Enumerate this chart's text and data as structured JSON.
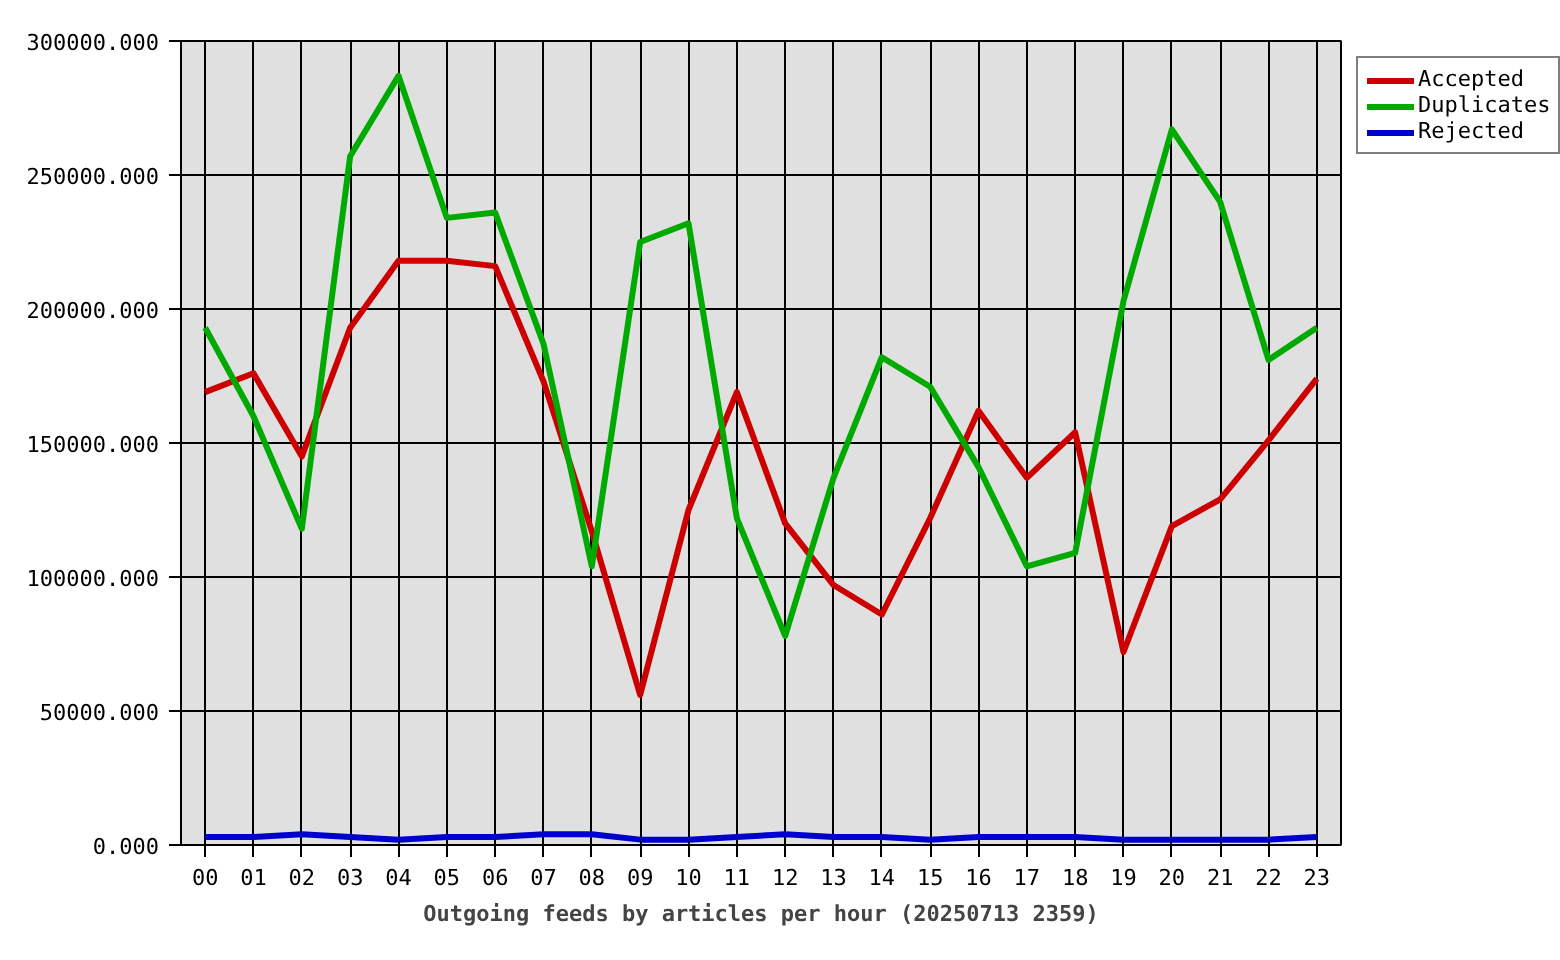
{
  "chart_data": {
    "type": "line",
    "xlabel": "Outgoing feeds by articles per hour (20250713 2359)",
    "categories": [
      "00",
      "01",
      "02",
      "03",
      "04",
      "05",
      "06",
      "07",
      "08",
      "09",
      "10",
      "11",
      "12",
      "13",
      "14",
      "15",
      "16",
      "17",
      "18",
      "19",
      "20",
      "21",
      "22",
      "23"
    ],
    "series": [
      {
        "name": "Accepted",
        "color": "#cc0000",
        "values": [
          169000,
          176000,
          145000,
          193000,
          218000,
          218000,
          216000,
          173000,
          117000,
          56000,
          125000,
          169000,
          120000,
          97000,
          86000,
          122000,
          162000,
          137000,
          154000,
          72000,
          119000,
          129000,
          151000,
          174000
        ]
      },
      {
        "name": "Duplicates",
        "color": "#00aa00",
        "values": [
          193000,
          160000,
          118000,
          257000,
          287000,
          234000,
          236000,
          187000,
          104000,
          225000,
          232000,
          122000,
          78000,
          137000,
          182000,
          171000,
          141000,
          104000,
          109000,
          203000,
          267000,
          240000,
          181000,
          193000
        ]
      },
      {
        "name": "Rejected",
        "color": "#0000cc",
        "values": [
          3000,
          3000,
          4000,
          3000,
          2000,
          3000,
          3000,
          4000,
          4000,
          2000,
          2000,
          3000,
          4000,
          3000,
          3000,
          2000,
          3000,
          3000,
          3000,
          2000,
          2000,
          2000,
          2000,
          3000
        ]
      }
    ],
    "ylim": [
      0,
      300000
    ],
    "yticks": [
      {
        "value": 0,
        "label": "0.000"
      },
      {
        "value": 50000,
        "label": "50000.000"
      },
      {
        "value": 100000,
        "label": "100000.000"
      },
      {
        "value": 150000,
        "label": "150000.000"
      },
      {
        "value": 200000,
        "label": "200000.000"
      },
      {
        "value": 250000,
        "label": "250000.000"
      },
      {
        "value": 300000,
        "label": "300000.000"
      }
    ],
    "grid": true,
    "legend": "top right",
    "marker": "none",
    "line_style": "solid"
  }
}
